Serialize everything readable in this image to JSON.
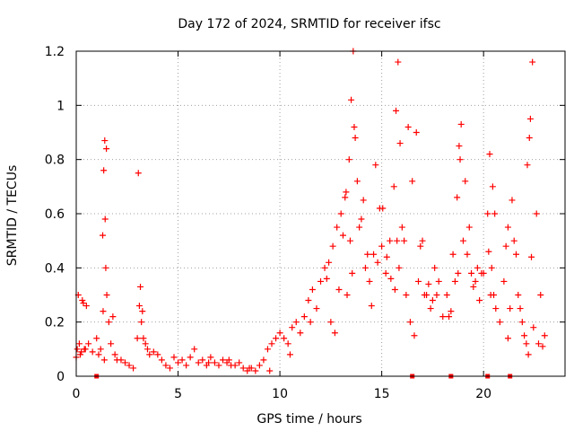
{
  "chart_data": {
    "type": "scatter",
    "title": "Day 172 of 2024, SRMTID for receiver ifsc",
    "xlabel": "GPS time / hours",
    "ylabel": "SRMTID / TECUs",
    "xlim": [
      0,
      24
    ],
    "ylim": [
      0,
      1.2
    ],
    "xticks": [
      0,
      5,
      10,
      15,
      20
    ],
    "xtick_labels": [
      "0",
      "5",
      "10",
      "15",
      "20"
    ],
    "yticks": [
      0,
      0.2,
      0.4,
      0.6,
      0.8,
      1,
      1.2
    ],
    "ytick_labels": [
      "0",
      "0.2",
      "0.4",
      "0.6",
      "0.8",
      "1",
      "1.2"
    ],
    "grid": true,
    "marker": "+",
    "series": [
      {
        "name": "SRMTID",
        "color": "#ff0000",
        "x": [
          0.0,
          0.1,
          0.2,
          0.3,
          0.4,
          0.5,
          0.6,
          0.8,
          1.0,
          1.1,
          1.2,
          1.3,
          1.35,
          1.4,
          1.45,
          1.5,
          1.6,
          1.7,
          1.8,
          1.9,
          2.0,
          2.2,
          2.4,
          2.6,
          2.8,
          3.0,
          3.1,
          3.2,
          3.3,
          3.4,
          3.5,
          3.6,
          3.8,
          4.0,
          4.2,
          4.4,
          4.6,
          4.8,
          5.0,
          5.2,
          5.4,
          5.6,
          5.8,
          6.0,
          6.2,
          6.4,
          6.6,
          6.8,
          7.0,
          7.2,
          7.4,
          7.6,
          7.8,
          8.0,
          8.2,
          8.4,
          8.6,
          8.8,
          9.0,
          9.2,
          9.4,
          9.6,
          9.8,
          10.0,
          10.2,
          10.4,
          10.6,
          10.8,
          11.0,
          11.2,
          11.4,
          11.6,
          11.8,
          12.0,
          12.2,
          12.4,
          12.6,
          12.8,
          13.0,
          13.2,
          13.3,
          13.4,
          13.5,
          13.6,
          13.7,
          13.8,
          13.9,
          14.0,
          14.2,
          14.4,
          14.6,
          14.8,
          15.0,
          15.2,
          15.4,
          15.6,
          15.7,
          15.8,
          15.9,
          16.0,
          16.2,
          16.4,
          16.6,
          16.8,
          17.0,
          17.2,
          17.4,
          17.6,
          17.8,
          18.0,
          18.2,
          18.4,
          18.6,
          18.7,
          18.8,
          18.9,
          19.0,
          19.2,
          19.4,
          19.6,
          19.8,
          20.0,
          20.2,
          20.3,
          20.4,
          20.5,
          20.6,
          20.8,
          21.0,
          21.2,
          21.4,
          21.6,
          21.8,
          22.0,
          22.1,
          22.2,
          22.3,
          22.4,
          22.6,
          22.8,
          23.0,
          0.05,
          0.15,
          0.25,
          0.35,
          0.45,
          1.32,
          1.38,
          1.42,
          1.48,
          3.05,
          3.15,
          3.25,
          12.5,
          12.7,
          12.9,
          13.1,
          13.25,
          13.45,
          13.55,
          13.65,
          14.1,
          14.3,
          14.5,
          14.7,
          15.05,
          15.25,
          15.45,
          15.65,
          15.75,
          15.85,
          16.3,
          16.5,
          16.7,
          16.9,
          17.3,
          17.5,
          17.7,
          18.3,
          18.5,
          18.75,
          18.85,
          19.1,
          19.3,
          19.5,
          19.7,
          20.25,
          20.35,
          20.45,
          20.55,
          21.1,
          21.3,
          21.5,
          21.7,
          21.9,
          22.15,
          22.25,
          22.35,
          22.45,
          22.7,
          22.9,
          6.5,
          7.5,
          8.5,
          9.5,
          10.5,
          11.5,
          12.3,
          14.9,
          16.1,
          17.1,
          19.9,
          21.2
        ],
        "y": [
          0.07,
          0.3,
          0.08,
          0.28,
          0.1,
          0.26,
          0.12,
          0.09,
          0.14,
          0.08,
          0.1,
          0.52,
          0.76,
          0.87,
          0.4,
          0.3,
          0.2,
          0.12,
          0.22,
          0.08,
          0.06,
          0.06,
          0.05,
          0.04,
          0.03,
          0.14,
          0.26,
          0.2,
          0.14,
          0.12,
          0.1,
          0.08,
          0.09,
          0.08,
          0.06,
          0.04,
          0.03,
          0.07,
          0.05,
          0.06,
          0.04,
          0.07,
          0.1,
          0.05,
          0.06,
          0.04,
          0.07,
          0.05,
          0.04,
          0.06,
          0.05,
          0.04,
          0.04,
          0.05,
          0.03,
          0.02,
          0.03,
          0.02,
          0.04,
          0.06,
          0.1,
          0.12,
          0.14,
          0.16,
          0.14,
          0.12,
          0.18,
          0.2,
          0.16,
          0.22,
          0.28,
          0.32,
          0.25,
          0.35,
          0.4,
          0.42,
          0.48,
          0.55,
          0.6,
          0.66,
          0.3,
          0.8,
          1.02,
          1.2,
          0.88,
          0.72,
          0.55,
          0.58,
          0.4,
          0.35,
          0.45,
          0.42,
          0.48,
          0.38,
          0.5,
          0.7,
          0.98,
          1.16,
          0.86,
          0.55,
          0.3,
          0.2,
          0.15,
          0.35,
          0.5,
          0.3,
          0.25,
          0.4,
          0.35,
          0.22,
          0.3,
          0.24,
          0.35,
          0.66,
          0.85,
          0.93,
          0.5,
          0.45,
          0.38,
          0.35,
          0.28,
          0.38,
          0.6,
          0.82,
          0.4,
          0.3,
          0.25,
          0.2,
          0.35,
          0.55,
          0.65,
          0.45,
          0.25,
          0.15,
          0.12,
          0.08,
          0.95,
          1.16,
          0.6,
          0.3,
          0.15,
          0.1,
          0.12,
          0.09,
          0.27,
          0.1,
          0.24,
          0.06,
          0.58,
          0.84,
          0.75,
          0.33,
          0.24,
          0.2,
          0.16,
          0.32,
          0.52,
          0.68,
          0.5,
          0.38,
          0.92,
          0.65,
          0.45,
          0.26,
          0.78,
          0.62,
          0.44,
          0.36,
          0.32,
          0.5,
          0.4,
          0.92,
          0.72,
          0.9,
          0.48,
          0.34,
          0.28,
          0.3,
          0.22,
          0.45,
          0.38,
          0.8,
          0.72,
          0.55,
          0.33,
          0.4,
          0.46,
          0.3,
          0.7,
          0.6,
          0.48,
          0.25,
          0.5,
          0.3,
          0.2,
          0.78,
          0.88,
          0.44,
          0.18,
          0.12,
          0.11,
          0.05,
          0.06,
          0.03,
          0.02,
          0.08,
          0.2,
          0.36,
          0.62,
          0.5,
          0.3,
          0.38,
          0.14
        ]
      }
    ],
    "baseline_markers": {
      "color": "#ff0000",
      "x": [
        1.0,
        16.5,
        18.4,
        20.2,
        21.3
      ],
      "y": [
        0,
        0,
        0,
        0,
        0
      ]
    }
  }
}
